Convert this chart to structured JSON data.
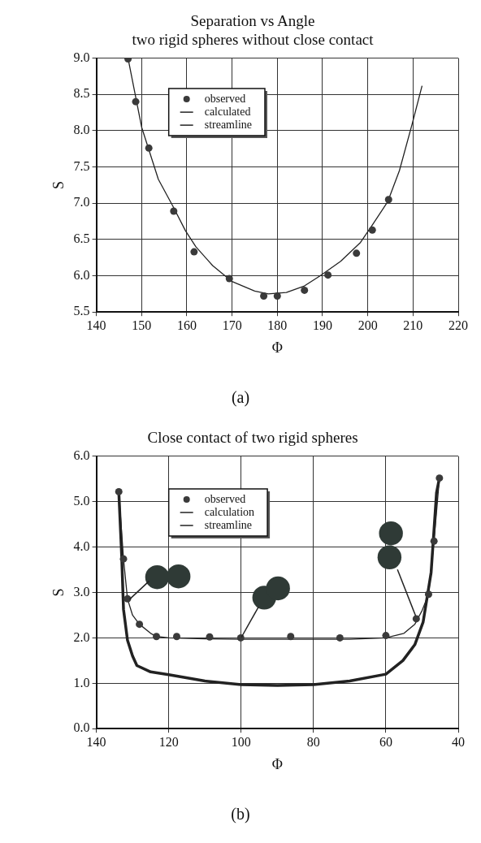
{
  "chart_data": [
    {
      "type": "scatter",
      "title": "Separation vs Angle",
      "subtitle": "two rigid spheres without close contact",
      "xlabel": "Φ",
      "ylabel": "S",
      "xlim": [
        140,
        220
      ],
      "xticks": [
        140,
        150,
        160,
        170,
        180,
        190,
        200,
        210,
        220
      ],
      "ylim": [
        5.5,
        9.0
      ],
      "yticks": [
        5.5,
        {
          "value": 6,
          "label": "6.0"
        },
        6.5,
        {
          "value": 7,
          "label": "7.0"
        },
        7.5,
        {
          "value": 8,
          "label": "8.0"
        },
        8.5,
        {
          "value": 9,
          "label": "9.0"
        }
      ],
      "grid": true,
      "legend": "top left",
      "series": [
        {
          "name": "observed",
          "type": "scatter",
          "marker": "circle",
          "color": "#3a3a3a",
          "x": [
            147,
            148.7,
            151.6,
            157.1,
            161.6,
            169.4,
            177,
            180,
            186,
            191.2,
            197.5,
            201,
            204.6
          ],
          "values": [
            8.99,
            8.4,
            7.76,
            6.89,
            6.33,
            5.96,
            5.72,
            5.72,
            5.8,
            6.01,
            6.31,
            6.63,
            7.05
          ]
        },
        {
          "name": "calculated",
          "type": "line",
          "marker": "none",
          "color": "#222222",
          "x": [
            147,
            150,
            153.7,
            157,
            159.7,
            162,
            165.7,
            170,
            175,
            178,
            182,
            186,
            189.5,
            194,
            198.4,
            201,
            204.4,
            207,
            209.8,
            212
          ],
          "values": [
            9.0,
            8.05,
            7.33,
            6.95,
            6.62,
            6.4,
            6.14,
            5.92,
            5.79,
            5.75,
            5.77,
            5.86,
            6.0,
            6.2,
            6.46,
            6.7,
            7.02,
            7.45,
            8.09,
            8.62
          ]
        },
        {
          "name": "streamline",
          "type": "line",
          "marker": "none",
          "color": "#222222"
        }
      ],
      "annotations": [
        "(a)"
      ]
    },
    {
      "type": "scatter",
      "title": "Close contact of two rigid spheres",
      "xlabel": "Φ",
      "ylabel": "S",
      "xlim": [
        140,
        40
      ],
      "xticks": [
        140,
        120,
        100,
        80,
        60,
        40
      ],
      "ylim": [
        0,
        6
      ],
      "yticks": [
        {
          "value": 0,
          "label": "0.0"
        },
        {
          "value": 1,
          "label": "1.0"
        },
        {
          "value": 2,
          "label": "2.0"
        },
        {
          "value": 3,
          "label": "3.0"
        },
        {
          "value": 4,
          "label": "4.0"
        },
        {
          "value": 5,
          "label": "5.0"
        },
        {
          "value": 6,
          "label": "6.0"
        }
      ],
      "grid": true,
      "legend": "top left",
      "series": [
        {
          "name": "observed",
          "type": "scatter",
          "marker": "circle",
          "color": "#3a3a3a",
          "x": [
            133.8,
            132.5,
            131.4,
            128.1,
            123.4,
            117.8,
            108.7,
            100.1,
            86.3,
            72.7,
            60,
            51.6,
            48.2,
            46.7,
            45.2
          ],
          "values": [
            5.22,
            3.74,
            2.86,
            2.3,
            2.03,
            2.03,
            2.02,
            2.0,
            2.03,
            2.0,
            2.05,
            2.42,
            2.96,
            4.13,
            5.52
          ]
        },
        {
          "name": "calculation",
          "type": "line",
          "marker": "none",
          "color": "#222222",
          "x": [
            133.8,
            133,
            132.5,
            131.4,
            130,
            128.8,
            125,
            120,
            110,
            100,
            90,
            80,
            70,
            60,
            55.3,
            52,
            49.7,
            47.5,
            46,
            45.2
          ],
          "values": [
            5.22,
            3.8,
            2.63,
            1.95,
            1.6,
            1.39,
            1.25,
            1.19,
            1.05,
            0.97,
            0.95,
            0.97,
            1.05,
            1.2,
            1.5,
            1.85,
            2.35,
            3.44,
            5.2,
            5.52
          ]
        },
        {
          "name": "streamline",
          "type": "line",
          "marker": "none",
          "color": "#222222",
          "x": [
            133.8,
            132.5,
            131.4,
            130,
            128.1,
            125,
            123.4,
            120,
            110,
            100,
            90,
            80,
            70,
            60,
            55,
            52,
            50,
            48.2,
            46.7,
            45.2
          ],
          "values": [
            5.22,
            3.74,
            2.86,
            2.5,
            2.3,
            2.1,
            2.03,
            2.0,
            1.98,
            1.97,
            1.97,
            1.97,
            1.97,
            2.0,
            2.1,
            2.3,
            2.6,
            2.96,
            4.13,
            5.52
          ]
        }
      ],
      "annotations": [
        "(b)"
      ]
    }
  ]
}
